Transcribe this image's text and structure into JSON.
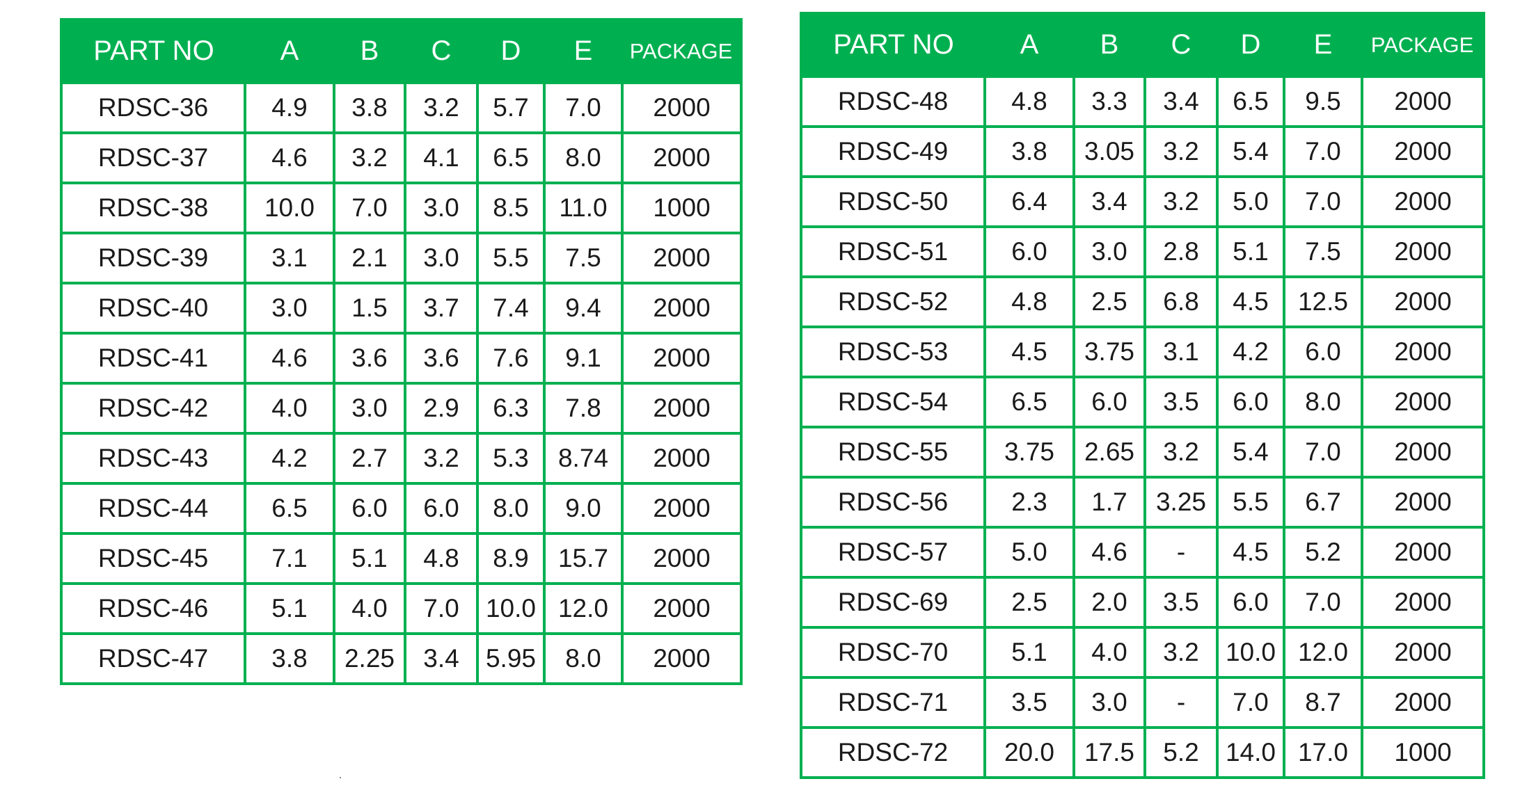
{
  "headers": {
    "part_no": "PART NO",
    "a": "A",
    "b": "B",
    "c": "C",
    "d": "D",
    "e": "E",
    "package": "PACKAGE"
  },
  "colors": {
    "header_bg": "#00b050",
    "header_text": "#ffffff",
    "border": "#00b050"
  },
  "tables": [
    {
      "rows": [
        [
          "RDSC-36",
          "4.9",
          "3.8",
          "3.2",
          "5.7",
          "7.0",
          "2000"
        ],
        [
          "RDSC-37",
          "4.6",
          "3.2",
          "4.1",
          "6.5",
          "8.0",
          "2000"
        ],
        [
          "RDSC-38",
          "10.0",
          "7.0",
          "3.0",
          "8.5",
          "11.0",
          "1000"
        ],
        [
          "RDSC-39",
          "3.1",
          "2.1",
          "3.0",
          "5.5",
          "7.5",
          "2000"
        ],
        [
          "RDSC-40",
          "3.0",
          "1.5",
          "3.7",
          "7.4",
          "9.4",
          "2000"
        ],
        [
          "RDSC-41",
          "4.6",
          "3.6",
          "3.6",
          "7.6",
          "9.1",
          "2000"
        ],
        [
          "RDSC-42",
          "4.0",
          "3.0",
          "2.9",
          "6.3",
          "7.8",
          "2000"
        ],
        [
          "RDSC-43",
          "4.2",
          "2.7",
          "3.2",
          "5.3",
          "8.74",
          "2000"
        ],
        [
          "RDSC-44",
          "6.5",
          "6.0",
          "6.0",
          "8.0",
          "9.0",
          "2000"
        ],
        [
          "RDSC-45",
          "7.1",
          "5.1",
          "4.8",
          "8.9",
          "15.7",
          "2000"
        ],
        [
          "RDSC-46",
          "5.1",
          "4.0",
          "7.0",
          "10.0",
          "12.0",
          "2000"
        ],
        [
          "RDSC-47",
          "3.8",
          "2.25",
          "3.4",
          "5.95",
          "8.0",
          "2000"
        ]
      ]
    },
    {
      "rows": [
        [
          "RDSC-48",
          "4.8",
          "3.3",
          "3.4",
          "6.5",
          "9.5",
          "2000"
        ],
        [
          "RDSC-49",
          "3.8",
          "3.05",
          "3.2",
          "5.4",
          "7.0",
          "2000"
        ],
        [
          "RDSC-50",
          "6.4",
          "3.4",
          "3.2",
          "5.0",
          "7.0",
          "2000"
        ],
        [
          "RDSC-51",
          "6.0",
          "3.0",
          "2.8",
          "5.1",
          "7.5",
          "2000"
        ],
        [
          "RDSC-52",
          "4.8",
          "2.5",
          "6.8",
          "4.5",
          "12.5",
          "2000"
        ],
        [
          "RDSC-53",
          "4.5",
          "3.75",
          "3.1",
          "4.2",
          "6.0",
          "2000"
        ],
        [
          "RDSC-54",
          "6.5",
          "6.0",
          "3.5",
          "6.0",
          "8.0",
          "2000"
        ],
        [
          "RDSC-55",
          "3.75",
          "2.65",
          "3.2",
          "5.4",
          "7.0",
          "2000"
        ],
        [
          "RDSC-56",
          "2.3",
          "1.7",
          "3.25",
          "5.5",
          "6.7",
          "2000"
        ],
        [
          "RDSC-57",
          "5.0",
          "4.6",
          "-",
          "4.5",
          "5.2",
          "2000"
        ],
        [
          "RDSC-69",
          "2.5",
          "2.0",
          "3.5",
          "6.0",
          "7.0",
          "2000"
        ],
        [
          "RDSC-70",
          "5.1",
          "4.0",
          "3.2",
          "10.0",
          "12.0",
          "2000"
        ],
        [
          "RDSC-71",
          "3.5",
          "3.0",
          "-",
          "7.0",
          "8.7",
          "2000"
        ],
        [
          "RDSC-72",
          "20.0",
          "17.5",
          "5.2",
          "14.0",
          "17.0",
          "1000"
        ]
      ]
    }
  ]
}
